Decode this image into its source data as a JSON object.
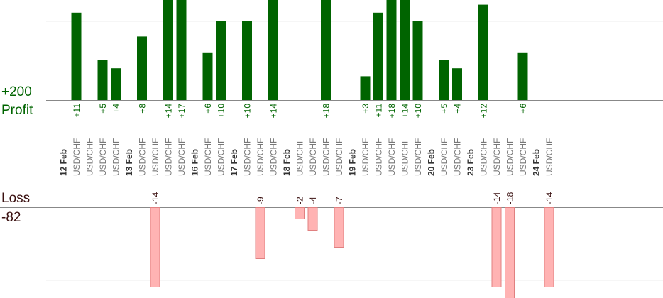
{
  "labels": {
    "profit_total": "+200",
    "profit_word": "Profit",
    "loss_word": "Loss",
    "loss_total": "-82"
  },
  "colors": {
    "profit_bar": "#006400",
    "loss_bar": "#ffb3b3",
    "loss_bar_border": "#e08080",
    "profit_text": "#006400",
    "loss_text": "#3a1010",
    "axis_text": "#777777",
    "date_text": "#333333",
    "baseline": "#888888",
    "grid": "#eeeeee"
  },
  "chart_data": {
    "type": "bar",
    "title": "",
    "xlabel": "",
    "ylabel": "",
    "grid": true,
    "profit_total": 200,
    "loss_total": -82,
    "columns": [
      {
        "label": "12 Feb",
        "kind": "date",
        "value": null
      },
      {
        "label": "USD/CHF",
        "kind": "trade",
        "value": 11
      },
      {
        "label": "USD/CHF",
        "kind": "trade",
        "value": null
      },
      {
        "label": "USD/CHF",
        "kind": "trade",
        "value": 5
      },
      {
        "label": "USD/CHF",
        "kind": "trade",
        "value": 4
      },
      {
        "label": "13 Feb",
        "kind": "date",
        "value": null
      },
      {
        "label": "USD/CHF",
        "kind": "trade",
        "value": 8
      },
      {
        "label": "USD/CHF",
        "kind": "trade",
        "value": -14
      },
      {
        "label": "USD/CHF",
        "kind": "trade",
        "value": 14
      },
      {
        "label": "USD/CHF",
        "kind": "trade",
        "value": 17
      },
      {
        "label": "16 Feb",
        "kind": "date",
        "value": null
      },
      {
        "label": "USD/CHF",
        "kind": "trade",
        "value": 6
      },
      {
        "label": "USD/CHF",
        "kind": "trade",
        "value": 10
      },
      {
        "label": "17 Feb",
        "kind": "date",
        "value": null
      },
      {
        "label": "USD/CHF",
        "kind": "trade",
        "value": 10
      },
      {
        "label": "USD/CHF",
        "kind": "trade",
        "value": -9
      },
      {
        "label": "USD/CHF",
        "kind": "trade",
        "value": 14
      },
      {
        "label": "18 Feb",
        "kind": "date",
        "value": null
      },
      {
        "label": "USD/CHF",
        "kind": "trade",
        "value": -2
      },
      {
        "label": "USD/CHF",
        "kind": "trade",
        "value": -4
      },
      {
        "label": "USD/CHF",
        "kind": "trade",
        "value": 18
      },
      {
        "label": "USD/CHF",
        "kind": "trade",
        "value": -7
      },
      {
        "label": "19 Feb",
        "kind": "date",
        "value": null
      },
      {
        "label": "USD/CHF",
        "kind": "trade",
        "value": 3
      },
      {
        "label": "USD/CHF",
        "kind": "trade",
        "value": 11
      },
      {
        "label": "USD/CHF",
        "kind": "trade",
        "value": 18
      },
      {
        "label": "USD/CHF",
        "kind": "trade",
        "value": 14
      },
      {
        "label": "USD/CHF",
        "kind": "trade",
        "value": 10
      },
      {
        "label": "20 Feb",
        "kind": "date",
        "value": null
      },
      {
        "label": "USD/CHF",
        "kind": "trade",
        "value": 5
      },
      {
        "label": "USD/CHF",
        "kind": "trade",
        "value": 4
      },
      {
        "label": "23 Feb",
        "kind": "date",
        "value": null
      },
      {
        "label": "USD/CHF",
        "kind": "trade",
        "value": 12
      },
      {
        "label": "USD/CHF",
        "kind": "trade",
        "value": -14
      },
      {
        "label": "USD/CHF",
        "kind": "trade",
        "value": -18
      },
      {
        "label": "USD/CHF",
        "kind": "trade",
        "value": 6
      },
      {
        "label": "24 Feb",
        "kind": "date",
        "value": null
      },
      {
        "label": "USD/CHF",
        "kind": "trade",
        "value": -14
      }
    ]
  }
}
